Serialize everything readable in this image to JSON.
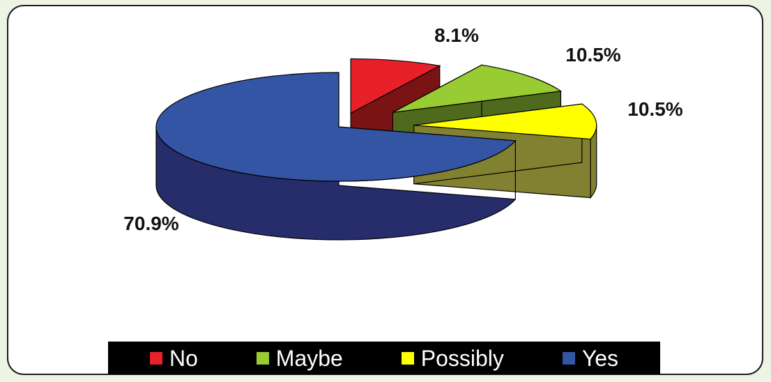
{
  "chart_data": {
    "type": "pie",
    "style": "3d-exploded",
    "categories": [
      "No",
      "Maybe",
      "Possibly",
      "Yes"
    ],
    "values": [
      8.1,
      10.5,
      10.5,
      70.9
    ],
    "labels": [
      "8.1%",
      "10.5%",
      "10.5%",
      "70.9%"
    ],
    "colors": [
      "#e8202a",
      "#99cc33",
      "#ffff00",
      "#3355a4"
    ],
    "side_colors": [
      "#7a1414",
      "#4f6a1c",
      "#828132",
      "#272c6a"
    ],
    "legend_position": "bottom",
    "title": ""
  },
  "legend": {
    "items": [
      {
        "label": "No",
        "color": "#e8202a"
      },
      {
        "label": "Maybe",
        "color": "#99cc33"
      },
      {
        "label": "Possibly",
        "color": "#ffff00"
      },
      {
        "label": "Yes",
        "color": "#3355a4"
      }
    ]
  },
  "colors": {
    "page_background": "#eef4e3",
    "panel_background": "#ffffff",
    "legend_background": "#000000"
  }
}
